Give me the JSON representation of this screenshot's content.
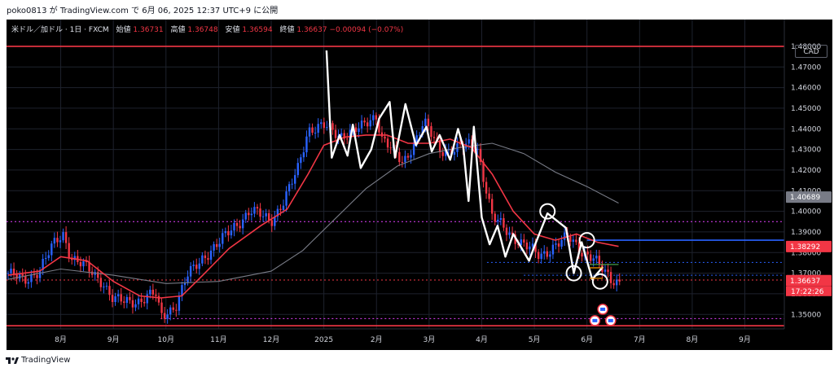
{
  "header": {
    "text": "poko0813 が TradingView.com で 6月 06, 2025 12:37 UTC+9 に公開"
  },
  "symbol": {
    "name": "米ドル／加ドル · 1日 · FXCM",
    "open_label": "始値",
    "open": "1.36731",
    "high_label": "高値",
    "high": "1.36748",
    "low_label": "安値",
    "low": "1.36594",
    "close_label": "終値",
    "close": "1.36637",
    "change": "−0.00094 (−0.07%)"
  },
  "currency_badge": "CAD",
  "footer": {
    "brand": "TradingView"
  },
  "colors": {
    "up": "#2962ff",
    "down": "#f23645",
    "ma_fast": "#f23645",
    "ma_slow": "#787b86",
    "pattern": "#ffffff",
    "level_red": "#f23645",
    "level_blue": "#2962ff",
    "dotted_purple": "#e040fb",
    "dotted_blue": "#2962ff"
  },
  "chart_data": {
    "type": "candlestick",
    "y_axis": {
      "min": 1.343,
      "max": 1.493,
      "ticks": [
        "1.35000",
        "1.36000",
        "1.37000",
        "1.38000",
        "1.39000",
        "1.40000",
        "1.41000",
        "1.42000",
        "1.43000",
        "1.44000",
        "1.45000",
        "1.46000",
        "1.47000",
        "1.48000"
      ]
    },
    "x_axis": {
      "labels": [
        "8月",
        "9月",
        "10月",
        "11月",
        "12月",
        "2025",
        "2月",
        "3月",
        "4月",
        "5月",
        "6月",
        "7月",
        "8月",
        "9月"
      ],
      "label_months": [
        1,
        2,
        3,
        4,
        5,
        6,
        7,
        8,
        9,
        10,
        11,
        12,
        13,
        14
      ]
    },
    "time_range_months": [
      -0.03,
      14.75
    ],
    "price_tags": [
      {
        "value": 1.40689,
        "label": "1.40689",
        "color": "#787b86"
      },
      {
        "value": 1.38292,
        "label": "1.38292",
        "color": "#f23645"
      },
      {
        "value": 1.36637,
        "label": "1.36637",
        "color": "#f23645"
      }
    ],
    "countdown": "17:22:26",
    "horizontal_levels": [
      {
        "value": 1.48,
        "style": "solid",
        "color": "#f23645",
        "from": -0.03
      },
      {
        "value": 1.3445,
        "style": "solid",
        "color": "#f23645",
        "from": -0.03
      },
      {
        "value": 1.395,
        "style": "dotted",
        "color": "#e040fb",
        "from": -0.03
      },
      {
        "value": 1.348,
        "style": "dotted",
        "color": "#e040fb",
        "from": 2.9
      },
      {
        "value": 1.386,
        "style": "solid",
        "color": "#2962ff",
        "from": 11.0
      },
      {
        "value": 1.3752,
        "style": "dotted",
        "color": "#2962ff",
        "from": 9.1
      },
      {
        "value": 1.369,
        "style": "dotted",
        "color": "#2962ff",
        "from": 9.8
      },
      {
        "value": 1.3667,
        "style": "dotted",
        "color": "#f23645",
        "from": -0.03
      }
    ],
    "candles_anchor": [
      [
        0.0,
        1.37
      ],
      [
        0.3,
        1.366
      ],
      [
        0.6,
        1.372
      ],
      [
        0.9,
        1.385
      ],
      [
        1.05,
        1.389
      ],
      [
        1.2,
        1.378
      ],
      [
        1.5,
        1.372
      ],
      [
        1.8,
        1.366
      ],
      [
        2.0,
        1.357
      ],
      [
        2.2,
        1.356
      ],
      [
        2.5,
        1.357
      ],
      [
        2.8,
        1.36
      ],
      [
        2.9,
        1.349
      ],
      [
        3.2,
        1.355
      ],
      [
        3.4,
        1.368
      ],
      [
        3.7,
        1.378
      ],
      [
        4.0,
        1.384
      ],
      [
        4.3,
        1.393
      ],
      [
        4.6,
        1.4
      ],
      [
        5.0,
        1.396
      ],
      [
        5.25,
        1.405
      ],
      [
        5.5,
        1.42
      ],
      [
        5.7,
        1.44
      ],
      [
        6.0,
        1.441
      ],
      [
        6.3,
        1.437
      ],
      [
        6.7,
        1.44
      ],
      [
        7.0,
        1.447
      ],
      [
        7.1,
        1.436
      ],
      [
        7.5,
        1.423
      ],
      [
        7.9,
        1.443
      ],
      [
        8.2,
        1.43
      ],
      [
        8.5,
        1.43
      ],
      [
        8.9,
        1.433
      ],
      [
        9.2,
        1.397
      ],
      [
        9.5,
        1.39
      ],
      [
        9.8,
        1.384
      ],
      [
        10.1,
        1.378
      ],
      [
        10.4,
        1.384
      ],
      [
        10.65,
        1.387
      ],
      [
        10.9,
        1.381
      ],
      [
        11.1,
        1.378
      ],
      [
        11.3,
        1.371
      ],
      [
        11.45,
        1.367
      ],
      [
        11.6,
        1.3664
      ]
    ],
    "ma_fast": [
      [
        0.0,
        1.369
      ],
      [
        0.6,
        1.371
      ],
      [
        1.0,
        1.378
      ],
      [
        1.5,
        1.376
      ],
      [
        2.0,
        1.366
      ],
      [
        2.5,
        1.359
      ],
      [
        2.9,
        1.358
      ],
      [
        3.3,
        1.359
      ],
      [
        3.7,
        1.369
      ],
      [
        4.2,
        1.382
      ],
      [
        4.8,
        1.393
      ],
      [
        5.3,
        1.401
      ],
      [
        5.7,
        1.418
      ],
      [
        6.0,
        1.432
      ],
      [
        6.4,
        1.436
      ],
      [
        6.8,
        1.437
      ],
      [
        7.2,
        1.437
      ],
      [
        7.6,
        1.433
      ],
      [
        8.0,
        1.433
      ],
      [
        8.4,
        1.435
      ],
      [
        8.8,
        1.431
      ],
      [
        9.2,
        1.418
      ],
      [
        9.6,
        1.4
      ],
      [
        10.0,
        1.389
      ],
      [
        10.4,
        1.386
      ],
      [
        10.8,
        1.389
      ],
      [
        11.2,
        1.385
      ],
      [
        11.6,
        1.383
      ]
    ],
    "ma_slow": [
      [
        0.0,
        1.367
      ],
      [
        1.0,
        1.372
      ],
      [
        2.0,
        1.369
      ],
      [
        3.0,
        1.365
      ],
      [
        4.0,
        1.366
      ],
      [
        5.0,
        1.371
      ],
      [
        5.6,
        1.381
      ],
      [
        6.2,
        1.396
      ],
      [
        6.8,
        1.411
      ],
      [
        7.4,
        1.422
      ],
      [
        8.0,
        1.428
      ],
      [
        8.6,
        1.431
      ],
      [
        9.2,
        1.433
      ],
      [
        9.8,
        1.428
      ],
      [
        10.4,
        1.419
      ],
      [
        11.0,
        1.412
      ],
      [
        11.6,
        1.404
      ]
    ],
    "pattern_line": [
      [
        6.05,
        1.478
      ],
      [
        6.15,
        1.426
      ],
      [
        6.3,
        1.437
      ],
      [
        6.45,
        1.427
      ],
      [
        6.55,
        1.442
      ],
      [
        6.7,
        1.421
      ],
      [
        6.9,
        1.43
      ],
      [
        7.05,
        1.445
      ],
      [
        7.25,
        1.453
      ],
      [
        7.35,
        1.426
      ],
      [
        7.55,
        1.452
      ],
      [
        7.75,
        1.432
      ],
      [
        7.95,
        1.441
      ],
      [
        8.05,
        1.429
      ],
      [
        8.2,
        1.437
      ],
      [
        8.4,
        1.425
      ],
      [
        8.55,
        1.44
      ],
      [
        8.65,
        1.431
      ],
      [
        8.75,
        1.405
      ],
      [
        8.85,
        1.441
      ],
      [
        9.0,
        1.397
      ],
      [
        9.15,
        1.384
      ],
      [
        9.3,
        1.393
      ],
      [
        9.45,
        1.378
      ],
      [
        9.6,
        1.389
      ],
      [
        9.9,
        1.376
      ],
      [
        10.0,
        1.383
      ],
      [
        10.25,
        1.399
      ],
      [
        10.6,
        1.392
      ],
      [
        10.75,
        1.37
      ],
      [
        10.9,
        1.385
      ],
      [
        11.1,
        1.367
      ],
      [
        11.3,
        1.373
      ]
    ],
    "pattern_circles": [
      [
        10.25,
        1.4
      ],
      [
        10.75,
        1.37
      ],
      [
        11.0,
        1.386
      ],
      [
        11.25,
        1.366
      ]
    ],
    "tp_marks": [
      {
        "value": 1.3742,
        "color": "#4caf50",
        "from": 11.05,
        "to": 11.6
      },
      {
        "value": 1.3726,
        "color": "#ff9800",
        "from": 11.05,
        "to": 11.3
      },
      {
        "value": 1.3675,
        "color": "#ff9800",
        "from": 11.05,
        "to": 11.3
      }
    ],
    "event_icons": [
      {
        "name": "us-flag-event-icon",
        "month": 11.3,
        "value": 1.3525
      },
      {
        "name": "ca-flag-event-icon",
        "month": 11.15,
        "value": 1.347
      },
      {
        "name": "us-flag-event-icon",
        "month": 11.45,
        "value": 1.347
      }
    ]
  }
}
